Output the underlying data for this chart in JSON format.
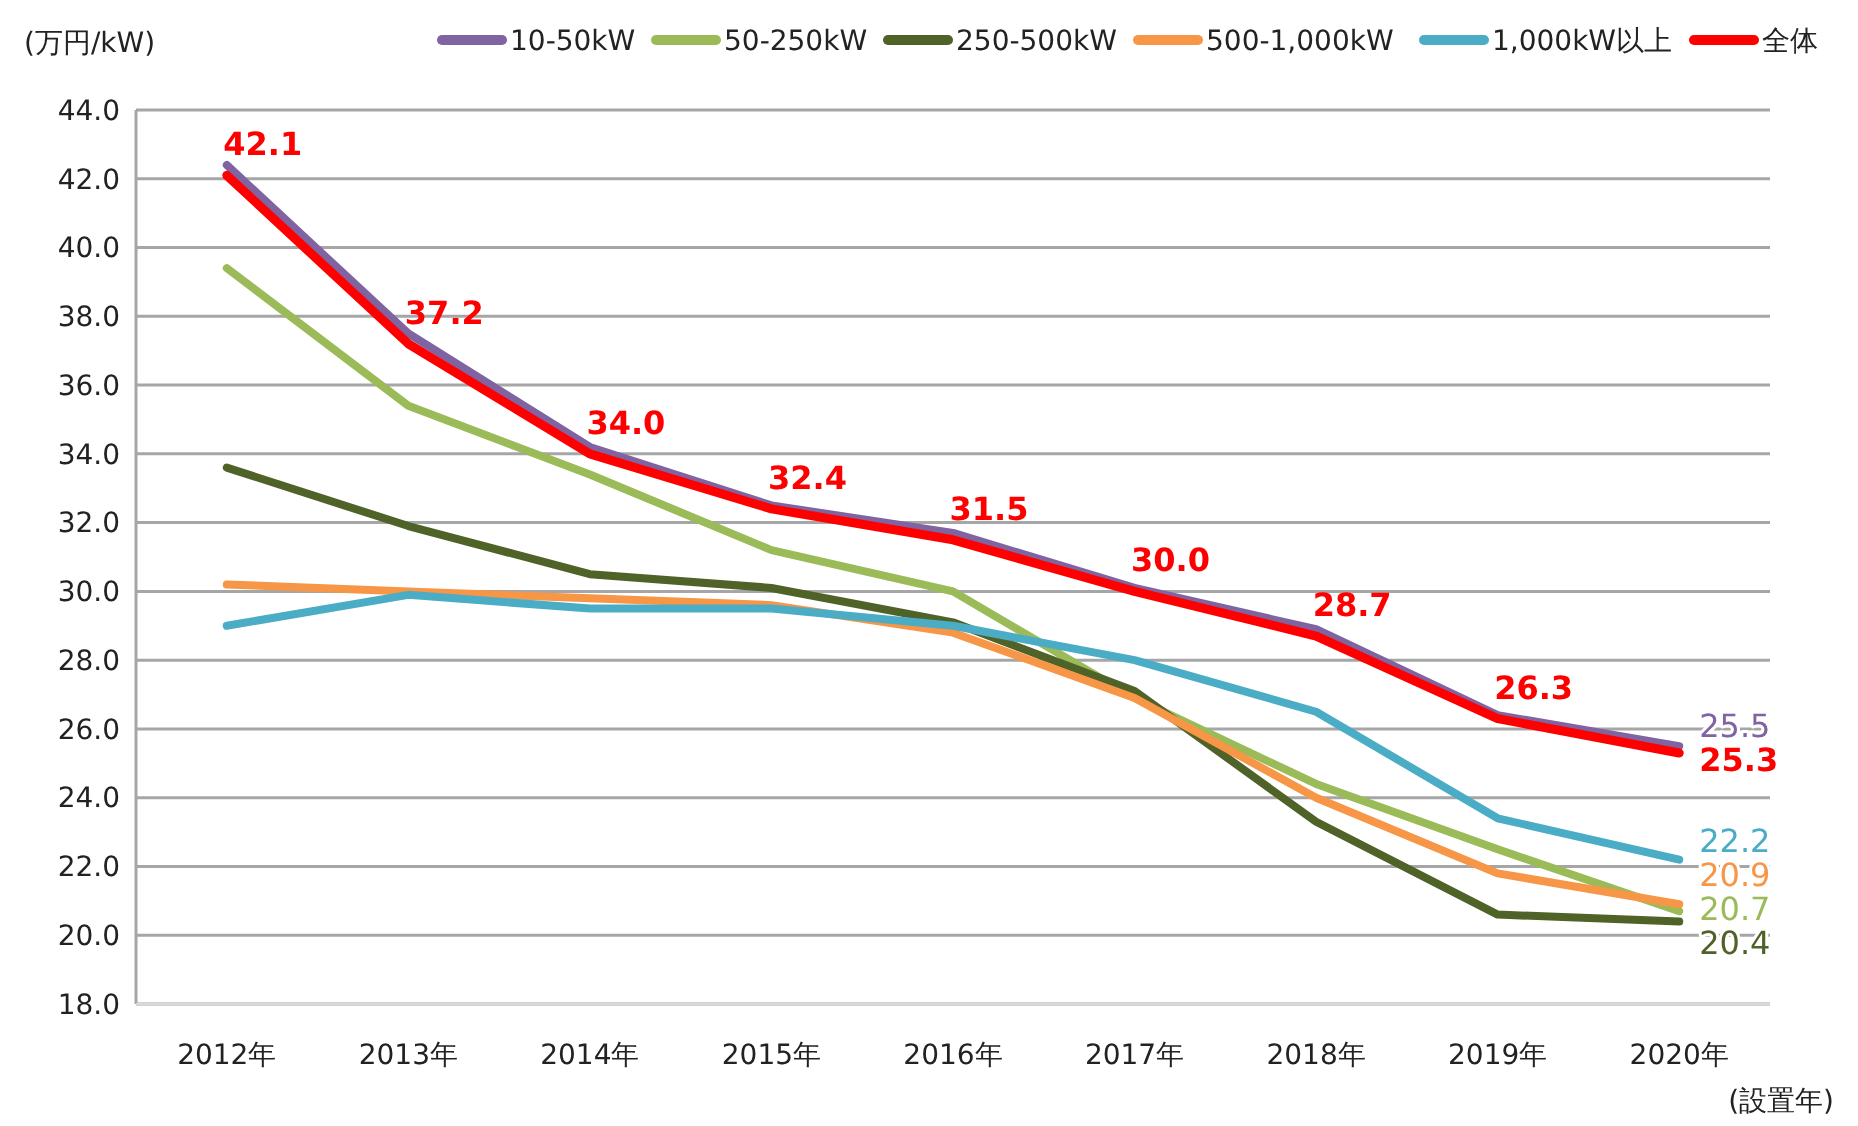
{
  "chart_data": {
    "type": "line",
    "ylabel": "(万円/kW)",
    "xlabel": "(設置年)",
    "categories": [
      "2012年",
      "2013年",
      "2014年",
      "2015年",
      "2016年",
      "2017年",
      "2018年",
      "2019年",
      "2020年"
    ],
    "ylim": [
      18,
      44
    ],
    "yticks": [
      {
        "value": 18,
        "label": "18.0"
      },
      {
        "value": 20,
        "label": "20.0"
      },
      {
        "value": 22,
        "label": "22.0"
      },
      {
        "value": 24,
        "label": "24.0"
      },
      {
        "value": 26,
        "label": "26.0"
      },
      {
        "value": 28,
        "label": "28.0"
      },
      {
        "value": 30,
        "label": "30.0"
      },
      {
        "value": 32,
        "label": "32.0"
      },
      {
        "value": 34,
        "label": "34.0"
      },
      {
        "value": 36,
        "label": "36.0"
      },
      {
        "value": 38,
        "label": "38.0"
      },
      {
        "value": 40,
        "label": "40.0"
      },
      {
        "value": 42,
        "label": "42.0"
      },
      {
        "value": 44,
        "label": "44.0"
      }
    ],
    "grid": "y",
    "legend": "top",
    "marker": "none",
    "line_style": "solid",
    "series": [
      {
        "name": "10-50kW",
        "color": "#8064a2",
        "values": [
          42.4,
          37.5,
          34.2,
          32.5,
          31.7,
          30.1,
          28.9,
          26.4,
          25.5
        ],
        "value_labels": [
          null,
          null,
          null,
          null,
          null,
          null,
          null,
          null,
          "25.5"
        ]
      },
      {
        "name": "50-250kW",
        "color": "#9bbb59",
        "values": [
          39.4,
          35.4,
          33.4,
          31.2,
          30.0,
          26.9,
          24.4,
          22.5,
          20.7
        ],
        "value_labels": [
          null,
          null,
          null,
          null,
          null,
          null,
          null,
          null,
          "20.7"
        ]
      },
      {
        "name": "250-500kW",
        "color": "#4f6228",
        "values": [
          33.6,
          31.9,
          30.5,
          30.1,
          29.1,
          27.1,
          23.3,
          20.6,
          20.4
        ],
        "value_labels": [
          null,
          null,
          null,
          null,
          null,
          null,
          null,
          null,
          "20.4"
        ]
      },
      {
        "name": "500-1,000kW",
        "color": "#f79646",
        "values": [
          30.2,
          30.0,
          29.8,
          29.6,
          28.8,
          26.9,
          24.0,
          21.8,
          20.9
        ],
        "value_labels": [
          null,
          null,
          null,
          null,
          null,
          null,
          null,
          null,
          "20.9"
        ]
      },
      {
        "name": "1,000kW以上",
        "color": "#4bacc6",
        "values": [
          29.0,
          29.9,
          29.5,
          29.5,
          29.0,
          28.0,
          26.5,
          23.4,
          22.2
        ],
        "value_labels": [
          null,
          null,
          null,
          null,
          null,
          null,
          null,
          null,
          "22.2"
        ]
      },
      {
        "name": "全体",
        "color": "#ff0000",
        "values": [
          42.1,
          37.2,
          34.0,
          32.4,
          31.5,
          30.0,
          28.7,
          26.3,
          25.3
        ],
        "value_labels": [
          "42.1",
          "37.2",
          "34.0",
          "32.4",
          "31.5",
          "30.0",
          "28.7",
          "26.3",
          "25.3"
        ]
      }
    ]
  }
}
